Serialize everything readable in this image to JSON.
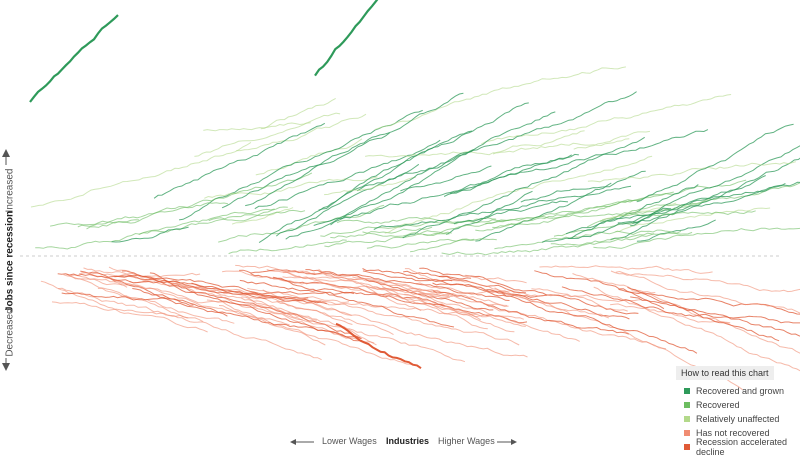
{
  "chart_data": {
    "type": "line",
    "title": "",
    "ylabel": "Jobs since recession",
    "y_increased_label": "Increased",
    "y_decreased_label": "Decreased",
    "xlabel": "Industries",
    "x_low_label": "Lower Wages",
    "x_high_label": "Higher Wages",
    "legend": {
      "title": "How to read this chart",
      "placement": "bottom-right",
      "items": [
        {
          "key": "grown",
          "label": "Recovered and grown",
          "color": "#2e9a5a"
        },
        {
          "key": "recovered",
          "label": "Recovered",
          "color": "#6cbd60"
        },
        {
          "key": "unaffected",
          "label": "Relatively unaffected",
          "color": "#b3d98a"
        },
        {
          "key": "notrecovered",
          "label": "Has not recovered",
          "color": "#f08c72"
        },
        {
          "key": "accelerated",
          "label": "Recession accelerated decline",
          "color": "#e05a36"
        }
      ]
    },
    "baseline_color": "#cccccc",
    "series_count": 150
  }
}
